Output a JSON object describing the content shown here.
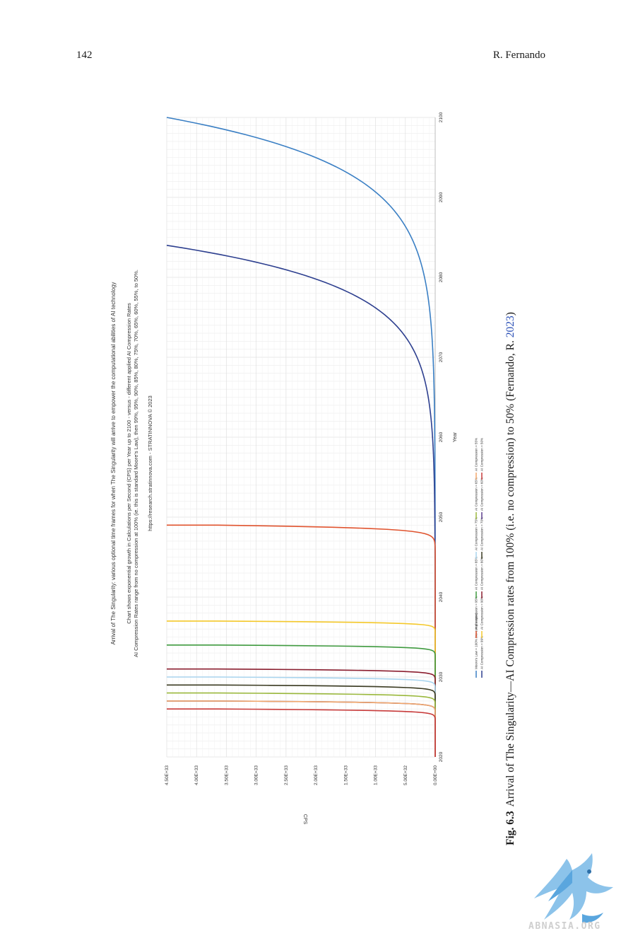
{
  "header": {
    "page_number": "142",
    "running_head": "R. Fernando"
  },
  "caption": {
    "label": "Fig. 6.3",
    "text": "Arrival of The Singularity—AI Compression rates from 100% (i.e. no compression) to 50% (Fernando, R. ",
    "citation_year": "2023",
    "closing": ")"
  },
  "watermark": {
    "text": "ABNASIA.ORG"
  },
  "chart_data": {
    "type": "line",
    "title_lines": [
      "Arrival of The Singularity: various optional time frames for when The Singularity will arrive to empower the computational abilities of AI technology",
      "Chart shows exponential growth in Calculations per Second (CPS) per Year up to 2100 - versus - different applied AI Compression Rates",
      "AI Compression Rates range from no compression at 100% (ie. this is standard Moore's Law), then 99%, 95%, 90%, 85%, 80%, 75%, 70%, 65%, 60%, 55%, to 50%.",
      "https://research.stratinnova.com - STRATINNOVA © 2023"
    ],
    "xlabel": "Year",
    "ylabel": "CPS",
    "x_ticks": [
      2020,
      2030,
      2040,
      2050,
      2060,
      2070,
      2080,
      2090,
      2100
    ],
    "y_ticks": [
      "0.00E+00",
      "5.00E+32",
      "1.00E+33",
      "1.50E+33",
      "2.00E+33",
      "2.50E+33",
      "3.00E+33",
      "3.50E+33",
      "4.00E+33",
      "4.50E+33"
    ],
    "xlim": [
      2020,
      2100
    ],
    "ylim": [
      0,
      4.5e+33
    ],
    "grid": true,
    "legend_position": "bottom",
    "series": [
      {
        "name": "Moore's Law = 100% (no compression)",
        "color": "#3a7fc4",
        "singularity_year": 2100
      },
      {
        "name": "AI Compression = 99%",
        "color": "#2d3f8f",
        "singularity_year": 2084
      },
      {
        "name": "AI Compression = 95%",
        "color": "#e0532e",
        "singularity_year": 2049
      },
      {
        "name": "AI Compression = 90%",
        "color": "#f4c82a",
        "singularity_year": 2037
      },
      {
        "name": "AI Compression = 85%",
        "color": "#3f9a3f",
        "singularity_year": 2034
      },
      {
        "name": "AI Compression = 80%",
        "color": "#8b1e2f",
        "singularity_year": 2031
      },
      {
        "name": "AI Compression = 75%",
        "color": "#a8d4ee",
        "singularity_year": 2030
      },
      {
        "name": "AI Compression = 70%",
        "color": "#3b3b22",
        "singularity_year": 2029
      },
      {
        "name": "AI Compression = 65%",
        "color": "#9ab83c",
        "singularity_year": 2028
      },
      {
        "name": "AI Compression = 60%",
        "color": "#5b3d8c",
        "singularity_year": 2027
      },
      {
        "name": "AI Compression = 55%",
        "color": "#f2a76a",
        "singularity_year": 2027
      },
      {
        "name": "AI Compression = 50%",
        "color": "#c73a3a",
        "singularity_year": 2026
      }
    ]
  }
}
